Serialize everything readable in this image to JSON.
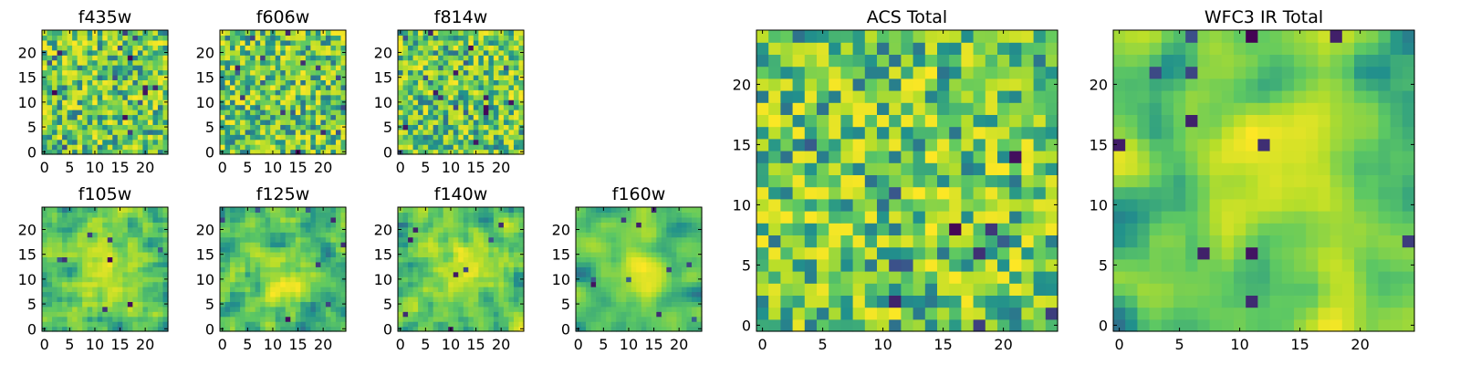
{
  "figure": {
    "colormap": "viridis",
    "cell_value_range": [
      0,
      1
    ],
    "color_stops": [
      "#440154",
      "#3b528b",
      "#21918c",
      "#5ec962",
      "#b8de29",
      "#fde725"
    ]
  },
  "chart_data": [
    {
      "type": "heatmap",
      "title": "f435w",
      "size": 25,
      "seed": 11,
      "smooth": 0,
      "outliers": 16,
      "xticks": [
        0,
        5,
        10,
        15,
        20
      ],
      "yticks": [
        0,
        5,
        10,
        15,
        20
      ],
      "xlim": [
        -0.5,
        24.5
      ],
      "ylim": [
        -0.5,
        24.5
      ]
    },
    {
      "type": "heatmap",
      "title": "f606w",
      "size": 25,
      "seed": 22,
      "smooth": 0,
      "outliers": 16,
      "xticks": [
        0,
        5,
        10,
        15,
        20
      ],
      "yticks": [
        0,
        5,
        10,
        15,
        20
      ],
      "xlim": [
        -0.5,
        24.5
      ],
      "ylim": [
        -0.5,
        24.5
      ]
    },
    {
      "type": "heatmap",
      "title": "f814w",
      "size": 25,
      "seed": 33,
      "smooth": 0,
      "outliers": 18,
      "xticks": [
        0,
        5,
        10,
        15,
        20
      ],
      "yticks": [
        0,
        5,
        10,
        15,
        20
      ],
      "xlim": [
        -0.5,
        24.5
      ],
      "ylim": [
        -0.5,
        24.5
      ]
    },
    {
      "type": "heatmap",
      "title": "f105w",
      "size": 25,
      "seed": 44,
      "smooth": 1,
      "outliers": 8,
      "xticks": [
        0,
        5,
        10,
        15,
        20
      ],
      "yticks": [
        0,
        5,
        10,
        15,
        20
      ],
      "xlim": [
        -0.5,
        24.5
      ],
      "ylim": [
        -0.5,
        24.5
      ]
    },
    {
      "type": "heatmap",
      "title": "f125w",
      "size": 25,
      "seed": 55,
      "smooth": 1,
      "outliers": 8,
      "xticks": [
        0,
        5,
        10,
        15,
        20
      ],
      "yticks": [
        0,
        5,
        10,
        15,
        20
      ],
      "xlim": [
        -0.5,
        24.5
      ],
      "ylim": [
        -0.5,
        24.5
      ]
    },
    {
      "type": "heatmap",
      "title": "f140w",
      "size": 25,
      "seed": 66,
      "smooth": 1,
      "outliers": 8,
      "xticks": [
        0,
        5,
        10,
        15,
        20
      ],
      "yticks": [
        0,
        5,
        10,
        15,
        20
      ],
      "xlim": [
        -0.5,
        24.5
      ],
      "ylim": [
        -0.5,
        24.5
      ]
    },
    {
      "type": "heatmap",
      "title": "f160w",
      "size": 25,
      "seed": 77,
      "smooth": 2,
      "outliers": 10,
      "xticks": [
        0,
        5,
        10,
        15,
        20
      ],
      "yticks": [
        0,
        5,
        10,
        15,
        20
      ],
      "xlim": [
        -0.5,
        24.5
      ],
      "ylim": [
        -0.5,
        24.5
      ]
    },
    {
      "type": "heatmap",
      "title": "ACS Total",
      "size": 25,
      "seed": 88,
      "smooth": 0,
      "outliers": 12,
      "xticks": [
        0,
        5,
        10,
        15,
        20
      ],
      "yticks": [
        0,
        5,
        10,
        15,
        20
      ],
      "xlim": [
        -0.5,
        24.5
      ],
      "ylim": [
        -0.5,
        24.5
      ]
    },
    {
      "type": "heatmap",
      "title": "WFC3 IR Total",
      "size": 25,
      "seed": 99,
      "smooth": 2,
      "outliers": 12,
      "xticks": [
        0,
        5,
        10,
        15,
        20
      ],
      "yticks": [
        0,
        5,
        10,
        15,
        20
      ],
      "xlim": [
        -0.5,
        24.5
      ],
      "ylim": [
        -0.5,
        24.5
      ]
    }
  ]
}
